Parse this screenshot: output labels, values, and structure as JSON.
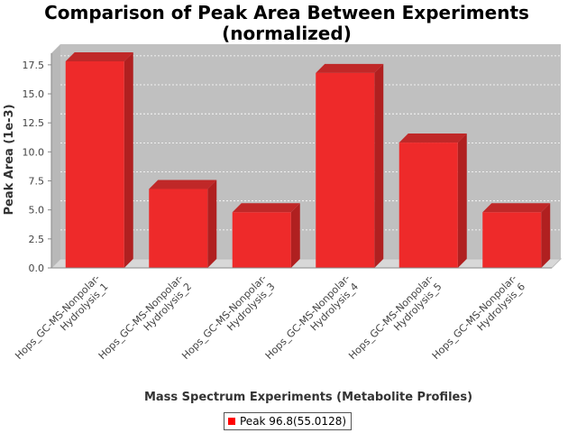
{
  "chart_data": {
    "type": "bar",
    "title": "Comparison of Peak Area Between Experiments",
    "subtitle": "(normalized)",
    "xlabel": "Mass Spectrum Experiments (Metabolite Profiles)",
    "ylabel": "Peak Area (1e-3)",
    "categories": [
      "Hops_GC-MS-Nonpolar-Hydrolysis_1",
      "Hops_GC-MS-Nonpolar-Hydrolysis_2",
      "Hops_GC-MS-Nonpolar-Hydrolysis_3",
      "Hops_GC-MS-Nonpolar-Hydrolysis_4",
      "Hops_GC-MS-Nonpolar-Hydrolysis_5",
      "Hops_GC-MS-Nonpolar-Hydrolysis_6"
    ],
    "category_lines": [
      [
        "Hops_GC-MS-Nonpolar-",
        "Hydrolysis_1"
      ],
      [
        "Hops_GC-MS-Nonpolar-",
        "Hydrolysis_2"
      ],
      [
        "Hops_GC-MS-Nonpolar-",
        "Hydrolysis_3"
      ],
      [
        "Hops_GC-MS-Nonpolar-",
        "Hydrolysis_4"
      ],
      [
        "Hops_GC-MS-Nonpolar-",
        "Hydrolysis_5"
      ],
      [
        "Hops_GC-MS-Nonpolar-",
        "Hydrolysis_6"
      ]
    ],
    "series": [
      {
        "name": "Peak 96.8(55.0128)",
        "values": [
          17.8,
          6.8,
          4.8,
          16.8,
          10.8,
          4.8
        ],
        "color": "#ff0000"
      }
    ],
    "ylim": [
      0,
      18.5
    ],
    "yticks": [
      "0.0",
      "2.5",
      "5.0",
      "7.5",
      "10.0",
      "12.5",
      "15.0",
      "17.5"
    ],
    "grid": true,
    "legend_position": "bottom",
    "plot_background": "#c0c0c0",
    "style": "3d"
  }
}
